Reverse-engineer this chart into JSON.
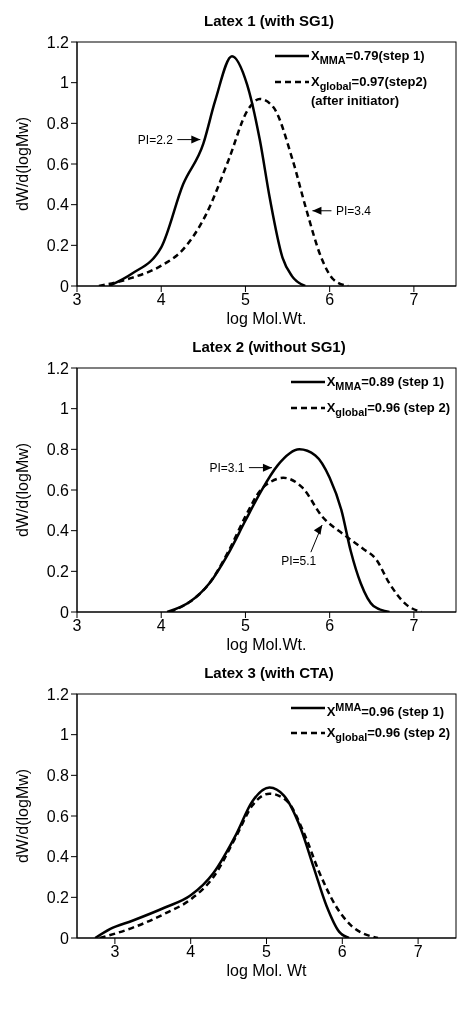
{
  "chart_data": [
    {
      "type": "line",
      "title": "Latex 1 (with SG1)",
      "xlabel": "log Mol.Wt.",
      "ylabel": "dW/d(logMw)",
      "xlim": [
        3,
        7.5
      ],
      "xticks": [
        3,
        4,
        5,
        6,
        7
      ],
      "ylim": [
        0,
        1.2
      ],
      "yticks": [
        0,
        0.2,
        0.4,
        0.6,
        0.8,
        1,
        1.2
      ],
      "legend": "top right",
      "series": [
        {
          "name": "X$_{MMA}$=0.79(step 1)",
          "color": "#000000",
          "line_style": "solid",
          "x": [
            3.38,
            3.65,
            4.0,
            4.26,
            4.5,
            4.64,
            4.84,
            5.02,
            5.17,
            5.29,
            5.44,
            5.55,
            5.71
          ],
          "values": [
            0,
            0.06,
            0.19,
            0.5,
            0.7,
            0.91,
            1.13,
            0.99,
            0.72,
            0.43,
            0.14,
            0.05,
            0
          ]
        },
        {
          "name": "X$_{global}$=0.97(step2) (after initiator)",
          "color": "#000000",
          "line_style": "dashed",
          "x": [
            3.26,
            3.65,
            4.0,
            4.26,
            4.53,
            4.8,
            5.02,
            5.17,
            5.33,
            5.56,
            5.72,
            5.9,
            6.05,
            6.22
          ],
          "values": [
            0,
            0.04,
            0.1,
            0.18,
            0.35,
            0.62,
            0.86,
            0.92,
            0.88,
            0.62,
            0.38,
            0.14,
            0.03,
            0
          ]
        }
      ],
      "annotations": [
        {
          "text": "PI=2.2",
          "x": 4.5,
          "y": 0.72
        },
        {
          "text": "PI=3.4",
          "x": 5.76,
          "y": 0.37
        }
      ]
    },
    {
      "type": "line",
      "title": "Latex 2 (without SG1)",
      "xlabel": "log Mol.Wt.",
      "ylabel": "dW/d(logMw)",
      "xlim": [
        3,
        7.5
      ],
      "xticks": [
        3,
        4,
        5,
        6,
        7
      ],
      "ylim": [
        0,
        1.2
      ],
      "yticks": [
        0,
        0.2,
        0.4,
        0.6,
        0.8,
        1,
        1.2
      ],
      "legend": "top right",
      "series": [
        {
          "name": "X$_{MMA}$=0.89 (step 1)",
          "color": "#000000",
          "line_style": "solid",
          "x": [
            4.07,
            4.34,
            4.57,
            4.8,
            5.0,
            5.18,
            5.38,
            5.64,
            5.83,
            6.0,
            6.14,
            6.25,
            6.37,
            6.52,
            6.71
          ],
          "values": [
            0,
            0.05,
            0.14,
            0.29,
            0.45,
            0.59,
            0.72,
            0.8,
            0.77,
            0.66,
            0.5,
            0.3,
            0.14,
            0.03,
            0
          ]
        },
        {
          "name": "X$_{global}$=0.96 (step 2)",
          "color": "#000000",
          "line_style": "dashed",
          "x": [
            4.1,
            4.34,
            4.57,
            4.8,
            5.0,
            5.18,
            5.3,
            5.45,
            5.68,
            5.91,
            6.17,
            6.4,
            6.55,
            6.71,
            6.9,
            7.09
          ],
          "values": [
            0,
            0.05,
            0.14,
            0.3,
            0.47,
            0.6,
            0.64,
            0.66,
            0.61,
            0.47,
            0.38,
            0.31,
            0.26,
            0.14,
            0.04,
            0
          ]
        }
      ],
      "annotations": [
        {
          "text": "PI=3.1",
          "x": 5.35,
          "y": 0.71
        },
        {
          "text": "PI=5.1",
          "x": 5.93,
          "y": 0.44
        }
      ]
    },
    {
      "type": "line",
      "title": "Latex 3 (with CTA)",
      "xlabel": "log Mol. Wt",
      "ylabel": "dW/d(logMw)",
      "xlim": [
        2.5,
        7.5
      ],
      "xticks": [
        3,
        4,
        5,
        6,
        7
      ],
      "ylim": [
        0,
        1.2
      ],
      "yticks": [
        0,
        0.2,
        0.4,
        0.6,
        0.8,
        1,
        1.2
      ],
      "legend": "top right",
      "series": [
        {
          "name": "X$^{MMA}$=0.96 (step 1)",
          "color": "#000000",
          "line_style": "solid",
          "x": [
            2.74,
            2.94,
            3.23,
            3.66,
            4.0,
            4.3,
            4.6,
            4.81,
            5.04,
            5.23,
            5.45,
            5.62,
            5.79,
            5.96,
            6.09
          ],
          "values": [
            0,
            0.045,
            0.085,
            0.15,
            0.21,
            0.32,
            0.51,
            0.67,
            0.74,
            0.7,
            0.54,
            0.35,
            0.16,
            0.03,
            0
          ]
        },
        {
          "name": "X$_{global}$=0.96 (step 2)",
          "color": "#000000",
          "line_style": "dashed",
          "x": [
            2.8,
            3.23,
            3.66,
            4.0,
            4.3,
            4.6,
            4.81,
            5.04,
            5.28,
            5.49,
            5.7,
            5.91,
            6.12,
            6.47
          ],
          "values": [
            0,
            0.05,
            0.12,
            0.19,
            0.3,
            0.5,
            0.65,
            0.71,
            0.67,
            0.52,
            0.32,
            0.16,
            0.06,
            0
          ]
        }
      ]
    }
  ]
}
